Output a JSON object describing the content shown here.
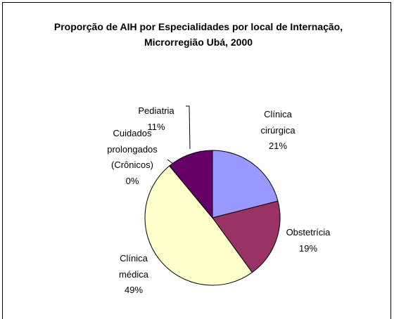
{
  "chart_data": {
    "type": "pie",
    "title": "Proporção de AIH por Especialidades por local de Internação, Microrregião Ubá, 2000",
    "categories": [
      "Clínica cirúrgica",
      "Obstetrícia",
      "Clínica médica",
      "Cuidados prolongados (Crônicos)",
      "Pediatria"
    ],
    "values": [
      21,
      19,
      49,
      0,
      11
    ],
    "value_labels": [
      "21%",
      "19%",
      "49%",
      "0%",
      "11%"
    ],
    "colors": [
      "#9999ff",
      "#993366",
      "#ffffcc",
      "#ffffff",
      "#660066"
    ]
  }
}
